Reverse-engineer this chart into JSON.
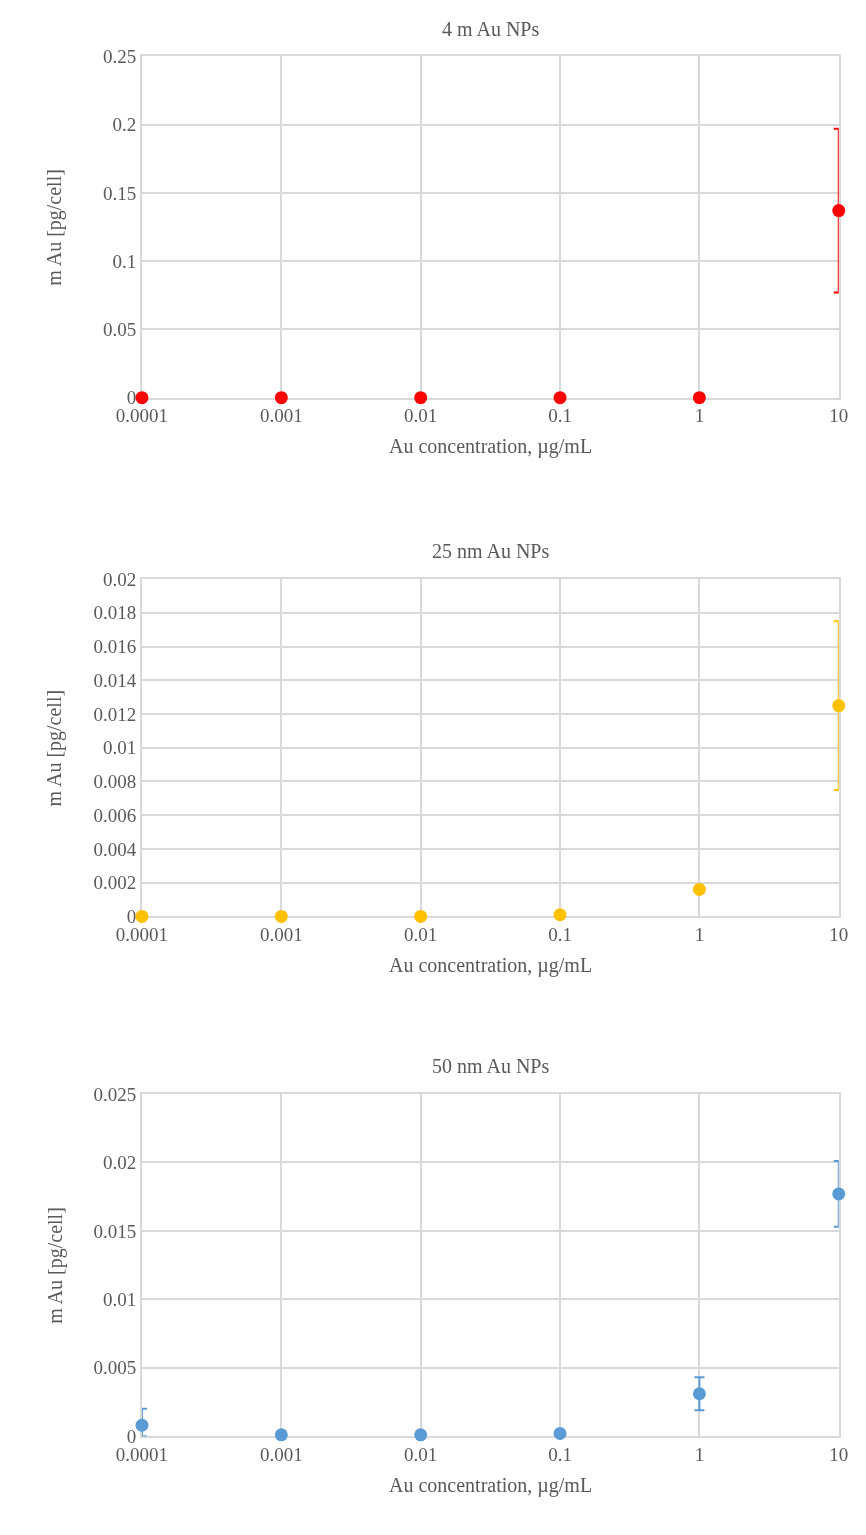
{
  "chart_data": [
    {
      "type": "scatter",
      "title": "4 m Au NPs",
      "xlabel": "Au concentration, µg/mL",
      "ylabel": "m Au [pg/cell]",
      "log": "x",
      "grid": true,
      "marker": "circle",
      "x": [
        0.0001,
        0.001,
        0.01,
        0.1,
        1,
        10
      ],
      "series": [
        {
          "color": "#ff0000",
          "values": [
            0,
            0,
            0,
            0,
            0,
            0.137
          ],
          "errors": [
            null,
            null,
            null,
            null,
            null,
            0.06
          ]
        }
      ],
      "xlim": [
        0.0001,
        10
      ],
      "xticks": [
        0.0001,
        0.001,
        0.01,
        0.1,
        1,
        10
      ],
      "ylim": [
        0,
        0.25
      ],
      "yticks": [
        0,
        0.05,
        0.1,
        0.15,
        0.2,
        0.25
      ]
    },
    {
      "type": "scatter",
      "title": "25 nm Au NPs",
      "xlabel": "Au concentration, µg/mL",
      "ylabel": "m Au [pg/cell]",
      "log": "x",
      "grid": true,
      "marker": "circle",
      "x": [
        0.0001,
        0.001,
        0.01,
        0.1,
        1,
        10
      ],
      "series": [
        {
          "color": "#ffc000",
          "values": [
            0,
            0,
            0,
            0.0001,
            0.0016,
            0.0125
          ],
          "errors": [
            null,
            null,
            null,
            null,
            null,
            0.005
          ]
        }
      ],
      "xlim": [
        0.0001,
        10
      ],
      "xticks": [
        0.0001,
        0.001,
        0.01,
        0.1,
        1,
        10
      ],
      "ylim": [
        0,
        0.02
      ],
      "yticks": [
        0,
        0.002,
        0.004,
        0.006,
        0.008,
        0.01,
        0.012,
        0.014,
        0.016,
        0.018,
        0.02
      ]
    },
    {
      "type": "scatter",
      "title": "50 nm Au NPs",
      "xlabel": "Au concentration, µg/mL",
      "ylabel": "m Au [pg/cell]",
      "log": "x",
      "grid": true,
      "marker": "circle",
      "x": [
        0.0001,
        0.001,
        0.01,
        0.1,
        1,
        10
      ],
      "series": [
        {
          "color": "#5b9bd5",
          "values": [
            0.0008,
            0.0001,
            0.0001,
            0.0002,
            0.0031,
            0.0177
          ],
          "errors": [
            [
              0,
              0.002
            ],
            null,
            null,
            null,
            0.0012,
            0.0024
          ]
        }
      ],
      "xlim": [
        0.0001,
        10
      ],
      "xticks": [
        0.0001,
        0.001,
        0.01,
        0.1,
        1,
        10
      ],
      "ylim": [
        0,
        0.025
      ],
      "yticks": [
        0,
        0.005,
        0.01,
        0.015,
        0.02,
        0.025
      ]
    }
  ]
}
